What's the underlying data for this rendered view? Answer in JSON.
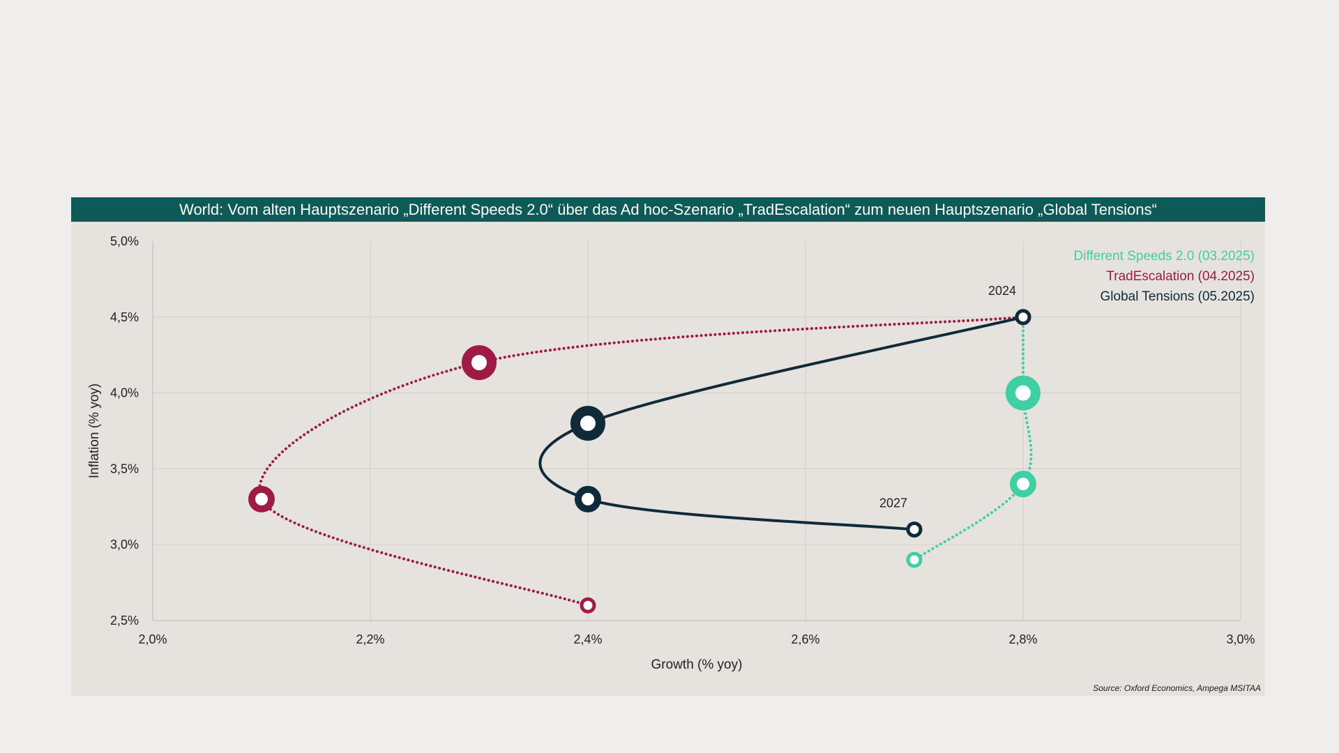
{
  "title": "World: Vom alten Hauptszenario „Different Speeds 2.0“ über das Ad hoc-Szenario „TradEscalation“ zum neuen Hauptszenario „Global Tensions“",
  "source": "Source: Oxford Economics, Ampega MSITAA",
  "colors": {
    "title_bg": "#0d5a58",
    "panel_bg": "#e6e2dd",
    "page_bg": "#efeeec",
    "grid": "#d5d1cc"
  },
  "chart_data": {
    "type": "scatter",
    "xlabel": "Growth (% yoy)",
    "ylabel": "Inflation (% yoy)",
    "xlim": [
      2.0,
      3.0
    ],
    "ylim": [
      2.5,
      5.0
    ],
    "xticks": [
      {
        "value": 2.0,
        "label": "2,0%"
      },
      {
        "value": 2.2,
        "label": "2,2%"
      },
      {
        "value": 2.4,
        "label": "2,4%"
      },
      {
        "value": 2.6,
        "label": "2,6%"
      },
      {
        "value": 2.8,
        "label": "2,8%"
      },
      {
        "value": 3.0,
        "label": "3,0%"
      }
    ],
    "yticks": [
      {
        "value": 2.5,
        "label": "2,5%"
      },
      {
        "value": 3.0,
        "label": "3,0%"
      },
      {
        "value": 3.5,
        "label": "3,5%"
      },
      {
        "value": 4.0,
        "label": "4,0%"
      },
      {
        "value": 4.5,
        "label": "4,5%"
      }
    ],
    "ytick_top": {
      "value": 5.0,
      "label": "5,0%"
    },
    "grid": true,
    "legend_position": "top-right",
    "series": [
      {
        "name": "Different Speeds 2.0 (03.2025)",
        "color": "#3fcfa4",
        "line_style": "dotted",
        "points": [
          {
            "x": 2.8,
            "y": 4.5,
            "size": "small"
          },
          {
            "x": 2.8,
            "y": 4.0,
            "size": "large"
          },
          {
            "x": 2.8,
            "y": 3.4,
            "size": "medium"
          },
          {
            "x": 2.7,
            "y": 2.9,
            "size": "small"
          }
        ]
      },
      {
        "name": "TradEscalation (04.2025)",
        "color": "#9e1b45",
        "line_style": "dotted",
        "points": [
          {
            "x": 2.8,
            "y": 4.5,
            "size": "small"
          },
          {
            "x": 2.3,
            "y": 4.2,
            "size": "large"
          },
          {
            "x": 2.1,
            "y": 3.3,
            "size": "medium"
          },
          {
            "x": 2.4,
            "y": 2.6,
            "size": "small"
          }
        ]
      },
      {
        "name": "Global Tensions (05.2025)",
        "color": "#0f2b3a",
        "line_style": "solid",
        "points": [
          {
            "x": 2.8,
            "y": 4.5,
            "size": "small"
          },
          {
            "x": 2.4,
            "y": 3.8,
            "size": "large"
          },
          {
            "x": 2.4,
            "y": 3.3,
            "size": "medium"
          },
          {
            "x": 2.7,
            "y": 3.1,
            "size": "small"
          }
        ]
      }
    ],
    "annotations": [
      {
        "text": "2024",
        "x": 2.8,
        "y": 4.5
      },
      {
        "text": "2027",
        "x": 2.7,
        "y": 3.1
      }
    ]
  }
}
